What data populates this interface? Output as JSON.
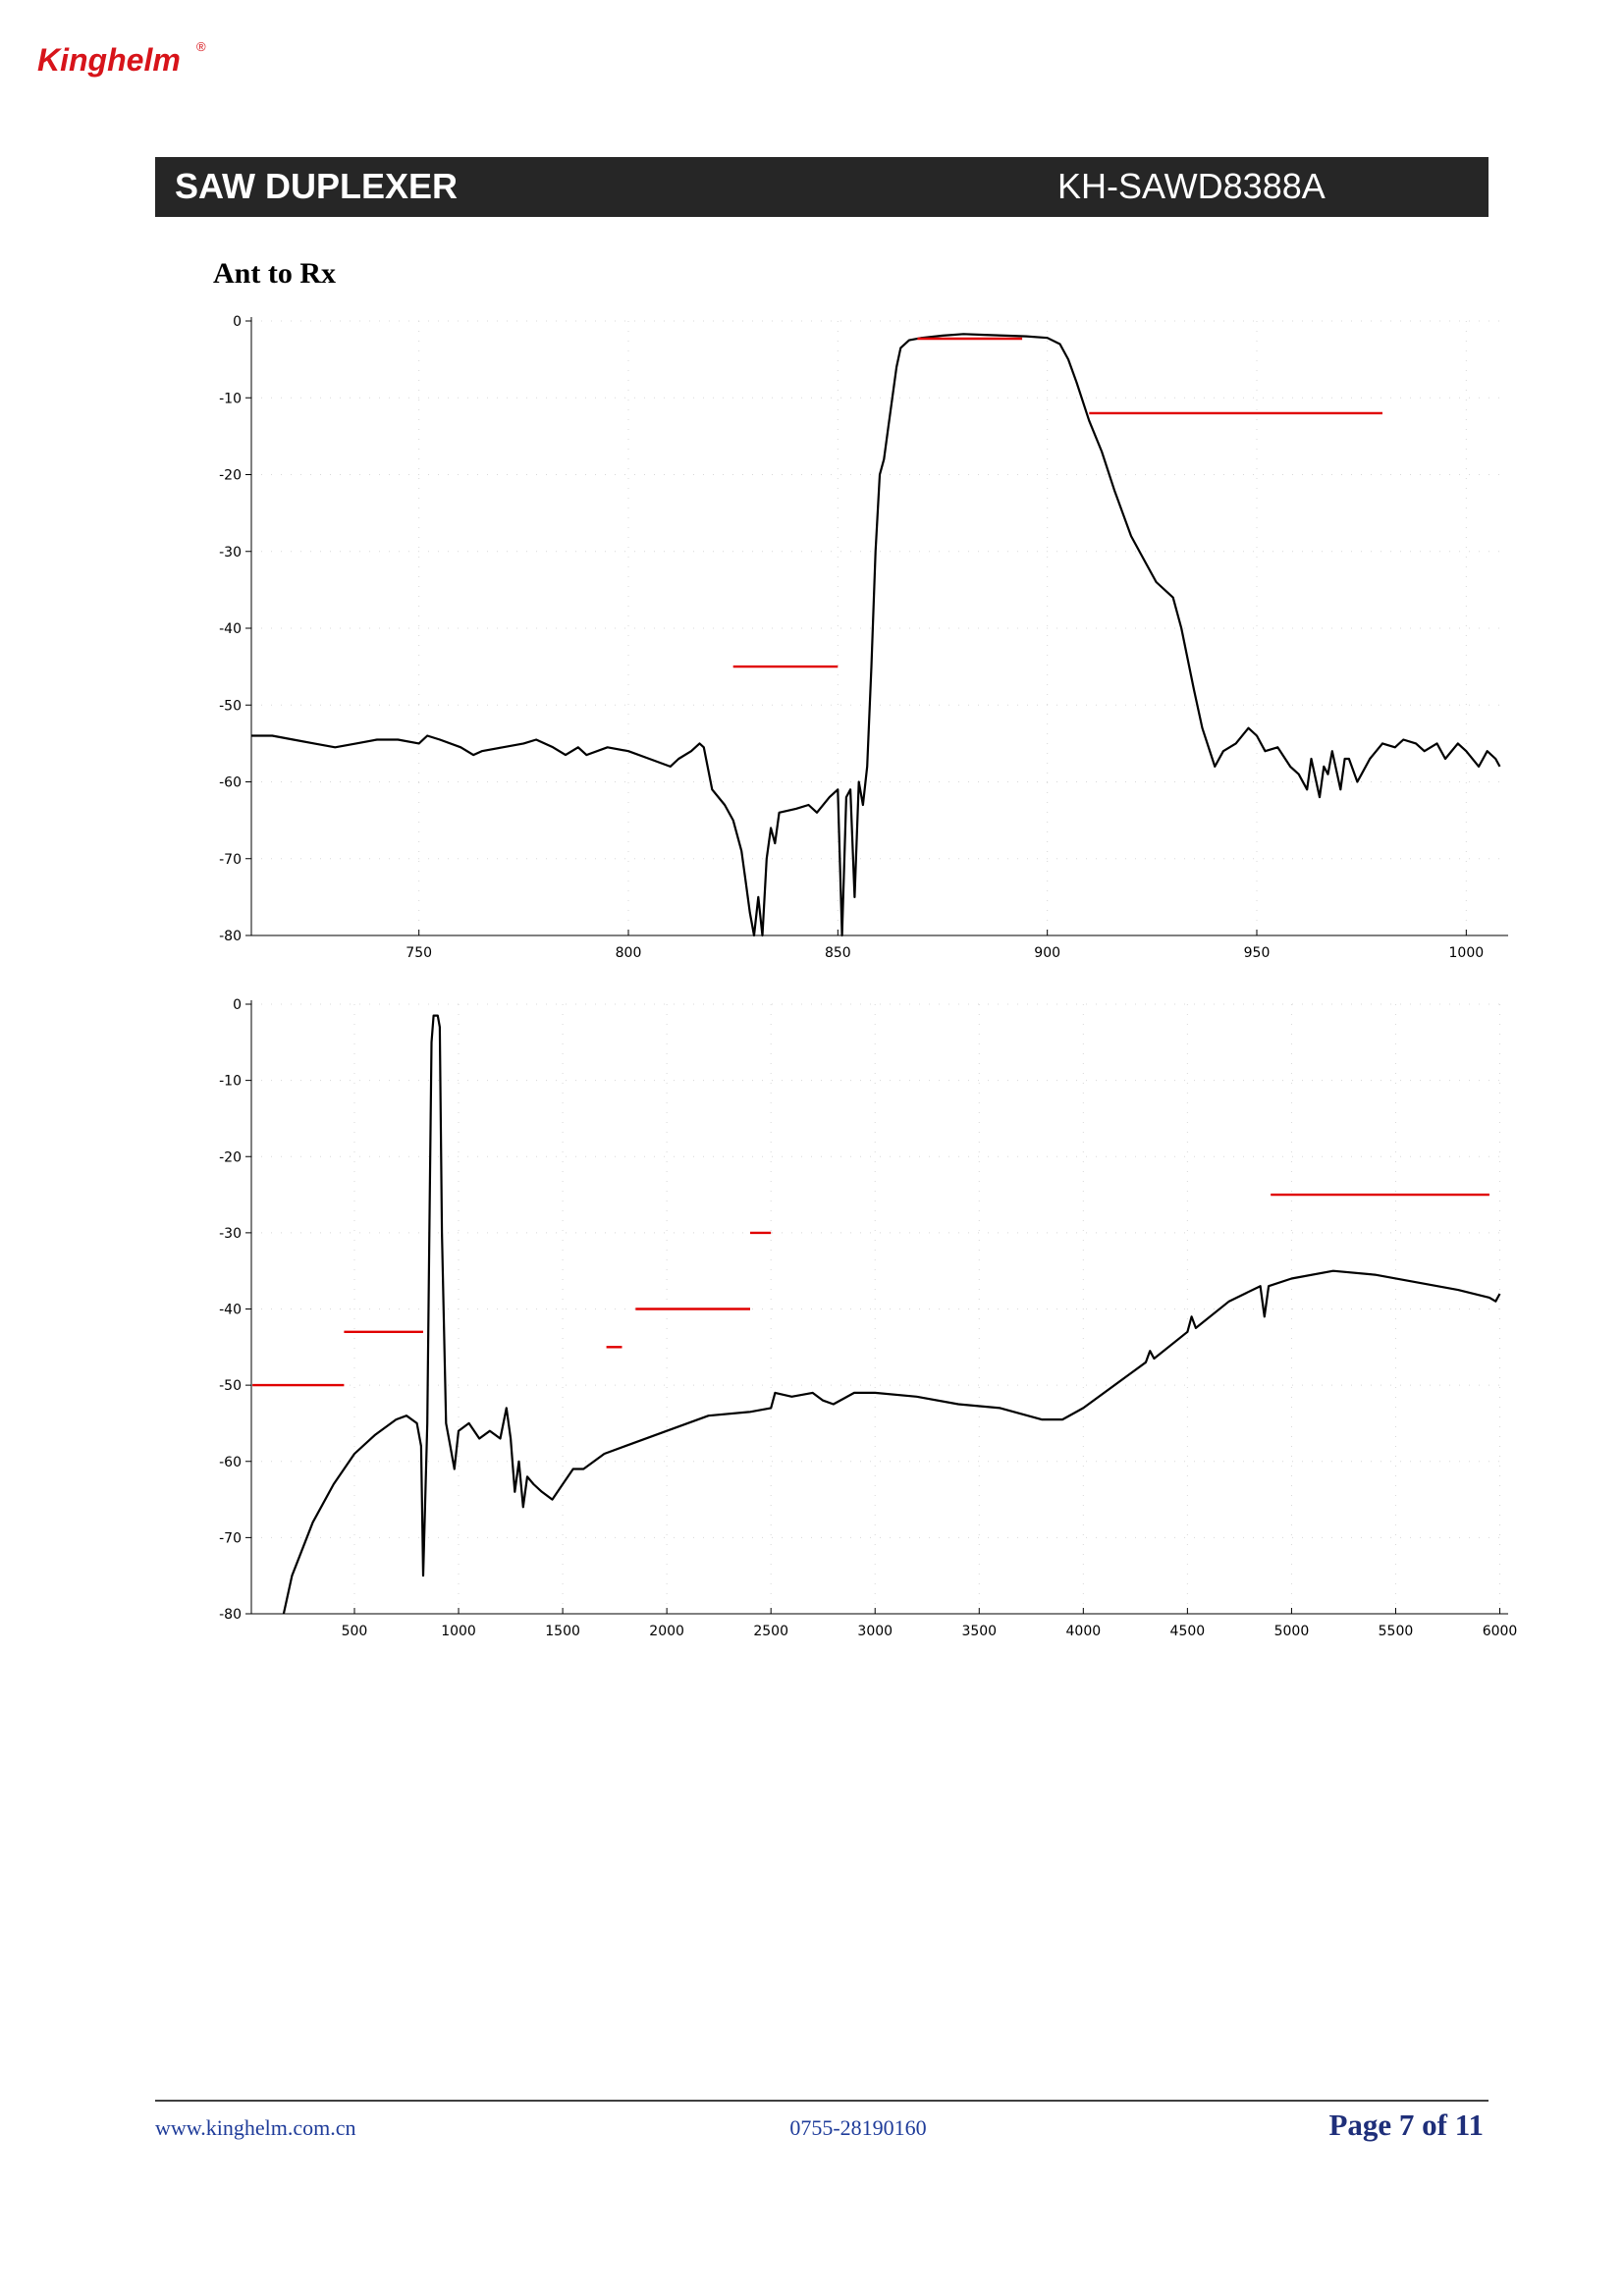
{
  "header": {
    "logo": "Kinghelm",
    "logo_mark": "®",
    "title": "SAW DUPLEXER",
    "part_number": "KH-SAWD8388A"
  },
  "section_title": "Ant to Rx",
  "chart_data": [
    {
      "type": "line",
      "grid": true,
      "xlim": [
        710,
        1010
      ],
      "ylim": [
        -80,
        0
      ],
      "xticks": [
        750,
        800,
        850,
        900,
        950,
        1000
      ],
      "yticks": [
        0,
        -10,
        -20,
        -30,
        -40,
        -50,
        -60,
        -70,
        -80
      ],
      "series": [
        {
          "color": "#000000",
          "x": [
            710,
            715,
            720,
            725,
            730,
            735,
            740,
            745,
            750,
            752,
            755,
            760,
            763,
            765,
            770,
            775,
            778,
            782,
            785,
            788,
            790,
            795,
            800,
            805,
            810,
            812,
            815,
            817,
            818,
            820,
            823,
            825,
            827,
            828,
            829,
            830,
            831,
            832,
            833,
            834,
            835,
            836,
            840,
            843,
            845,
            848,
            850,
            851,
            852,
            853,
            854,
            855,
            856,
            857,
            858,
            859,
            860,
            861,
            862,
            863,
            864,
            865,
            867,
            870,
            875,
            880,
            885,
            890,
            895,
            900,
            903,
            905,
            907,
            910,
            913,
            916,
            920,
            923,
            926,
            930,
            932,
            935,
            937,
            940,
            942,
            945,
            948,
            950,
            952,
            955,
            958,
            960,
            962,
            963,
            965,
            966,
            967,
            968,
            970,
            971,
            972,
            974,
            975,
            977,
            980,
            983,
            985,
            988,
            990,
            993,
            995,
            998,
            1000,
            1003,
            1005,
            1007,
            1008
          ],
          "values": [
            -54,
            -54,
            -54.5,
            -55,
            -55.5,
            -55,
            -54.5,
            -54.5,
            -55,
            -54,
            -54.5,
            -55.5,
            -56.5,
            -56,
            -55.5,
            -55,
            -54.5,
            -55.5,
            -56.5,
            -55.5,
            -56.5,
            -55.5,
            -56,
            -57,
            -58,
            -57,
            -56,
            -55,
            -55.5,
            -61,
            -63,
            -65,
            -69,
            -73,
            -77,
            -80,
            -75,
            -80,
            -70,
            -66,
            -68,
            -64,
            -63.5,
            -63,
            -64,
            -62,
            -61,
            -80,
            -62,
            -61,
            -75,
            -60,
            -63,
            -58,
            -45,
            -30,
            -20,
            -18,
            -14,
            -10,
            -6,
            -3.5,
            -2.5,
            -2.2,
            -1.9,
            -1.7,
            -1.8,
            -1.9,
            -2,
            -2.2,
            -3,
            -5,
            -8,
            -13,
            -17,
            -22,
            -28,
            -31,
            -34,
            -36,
            -40,
            -48,
            -53,
            -58,
            -56,
            -55,
            -53,
            -54,
            -56,
            -55.5,
            -58,
            -59,
            -61,
            -57,
            -62,
            -58,
            -59,
            -56,
            -61,
            -57,
            -57,
            -60,
            -59,
            -57,
            -55,
            -55.5,
            -54.5,
            -55,
            -56,
            -55,
            -57,
            -55,
            -56,
            -58,
            -56,
            -57,
            -58
          ]
        },
        {
          "color": "#e00000",
          "x": [
            825,
            850
          ],
          "values": [
            -45,
            -45
          ]
        },
        {
          "color": "#e00000",
          "x": [
            869,
            894
          ],
          "values": [
            -2.3,
            -2.3
          ]
        },
        {
          "color": "#e00000",
          "x": [
            910,
            980
          ],
          "values": [
            -12,
            -12
          ]
        }
      ]
    },
    {
      "type": "line",
      "grid": true,
      "xlim": [
        5,
        6040
      ],
      "ylim": [
        -80,
        0
      ],
      "xticks": [
        500,
        1000,
        1500,
        2000,
        2500,
        3000,
        3500,
        4000,
        4500,
        5000,
        5500,
        6000
      ],
      "yticks": [
        0,
        -10,
        -20,
        -30,
        -40,
        -50,
        -60,
        -70,
        -80
      ],
      "series": [
        {
          "color": "#000000",
          "x": [
            160,
            200,
            300,
            400,
            500,
            600,
            700,
            750,
            800,
            820,
            830,
            840,
            850,
            860,
            870,
            880,
            900,
            910,
            920,
            940,
            960,
            980,
            1000,
            1050,
            1100,
            1150,
            1200,
            1230,
            1250,
            1270,
            1290,
            1310,
            1330,
            1360,
            1400,
            1450,
            1500,
            1550,
            1600,
            1700,
            1800,
            2000,
            2200,
            2400,
            2500,
            2520,
            2600,
            2700,
            2750,
            2800,
            2900,
            3000,
            3200,
            3400,
            3600,
            3800,
            3900,
            4000,
            4200,
            4300,
            4320,
            4340,
            4500,
            4520,
            4540,
            4700,
            4850,
            4870,
            4890,
            5000,
            5200,
            5400,
            5600,
            5800,
            5950,
            5980,
            6000
          ],
          "values": [
            -80,
            -75,
            -68,
            -63,
            -59,
            -56.5,
            -54.5,
            -54,
            -55,
            -58,
            -75,
            -65,
            -55,
            -30,
            -5,
            -1.5,
            -1.5,
            -3,
            -30,
            -55,
            -58,
            -61,
            -56,
            -55,
            -57,
            -56,
            -57,
            -53,
            -57,
            -64,
            -60,
            -66,
            -62,
            -63,
            -64,
            -65,
            -63,
            -61,
            -61,
            -59,
            -58,
            -56,
            -54,
            -53.5,
            -53,
            -51,
            -51.5,
            -51,
            -52,
            -52.5,
            -51,
            -51,
            -51.5,
            -52.5,
            -53,
            -54.5,
            -54.5,
            -53,
            -49,
            -47,
            -45.5,
            -46.5,
            -43,
            -41,
            -42.5,
            -39,
            -37,
            -41,
            -37,
            -36,
            -35,
            -35.5,
            -36.5,
            -37.5,
            -38.5,
            -39,
            -38
          ]
        },
        {
          "color": "#e00000",
          "x": [
            10,
            450
          ],
          "values": [
            -50,
            -50
          ]
        },
        {
          "color": "#e00000",
          "x": [
            450,
            830
          ],
          "values": [
            -43,
            -43
          ]
        },
        {
          "color": "#e00000",
          "x": [
            1710,
            1785
          ],
          "values": [
            -45,
            -45
          ]
        },
        {
          "color": "#e00000",
          "x": [
            1850,
            2400
          ],
          "values": [
            -40,
            -40
          ]
        },
        {
          "color": "#e00000",
          "x": [
            2400,
            2500
          ],
          "values": [
            -30,
            -30
          ]
        },
        {
          "color": "#e00000",
          "x": [
            4900,
            5950
          ],
          "values": [
            -25,
            -25
          ]
        }
      ]
    }
  ],
  "footer": {
    "website": "www.kinghelm.com.cn",
    "phone": "0755-28190160",
    "page": "Page 7 of 11"
  }
}
